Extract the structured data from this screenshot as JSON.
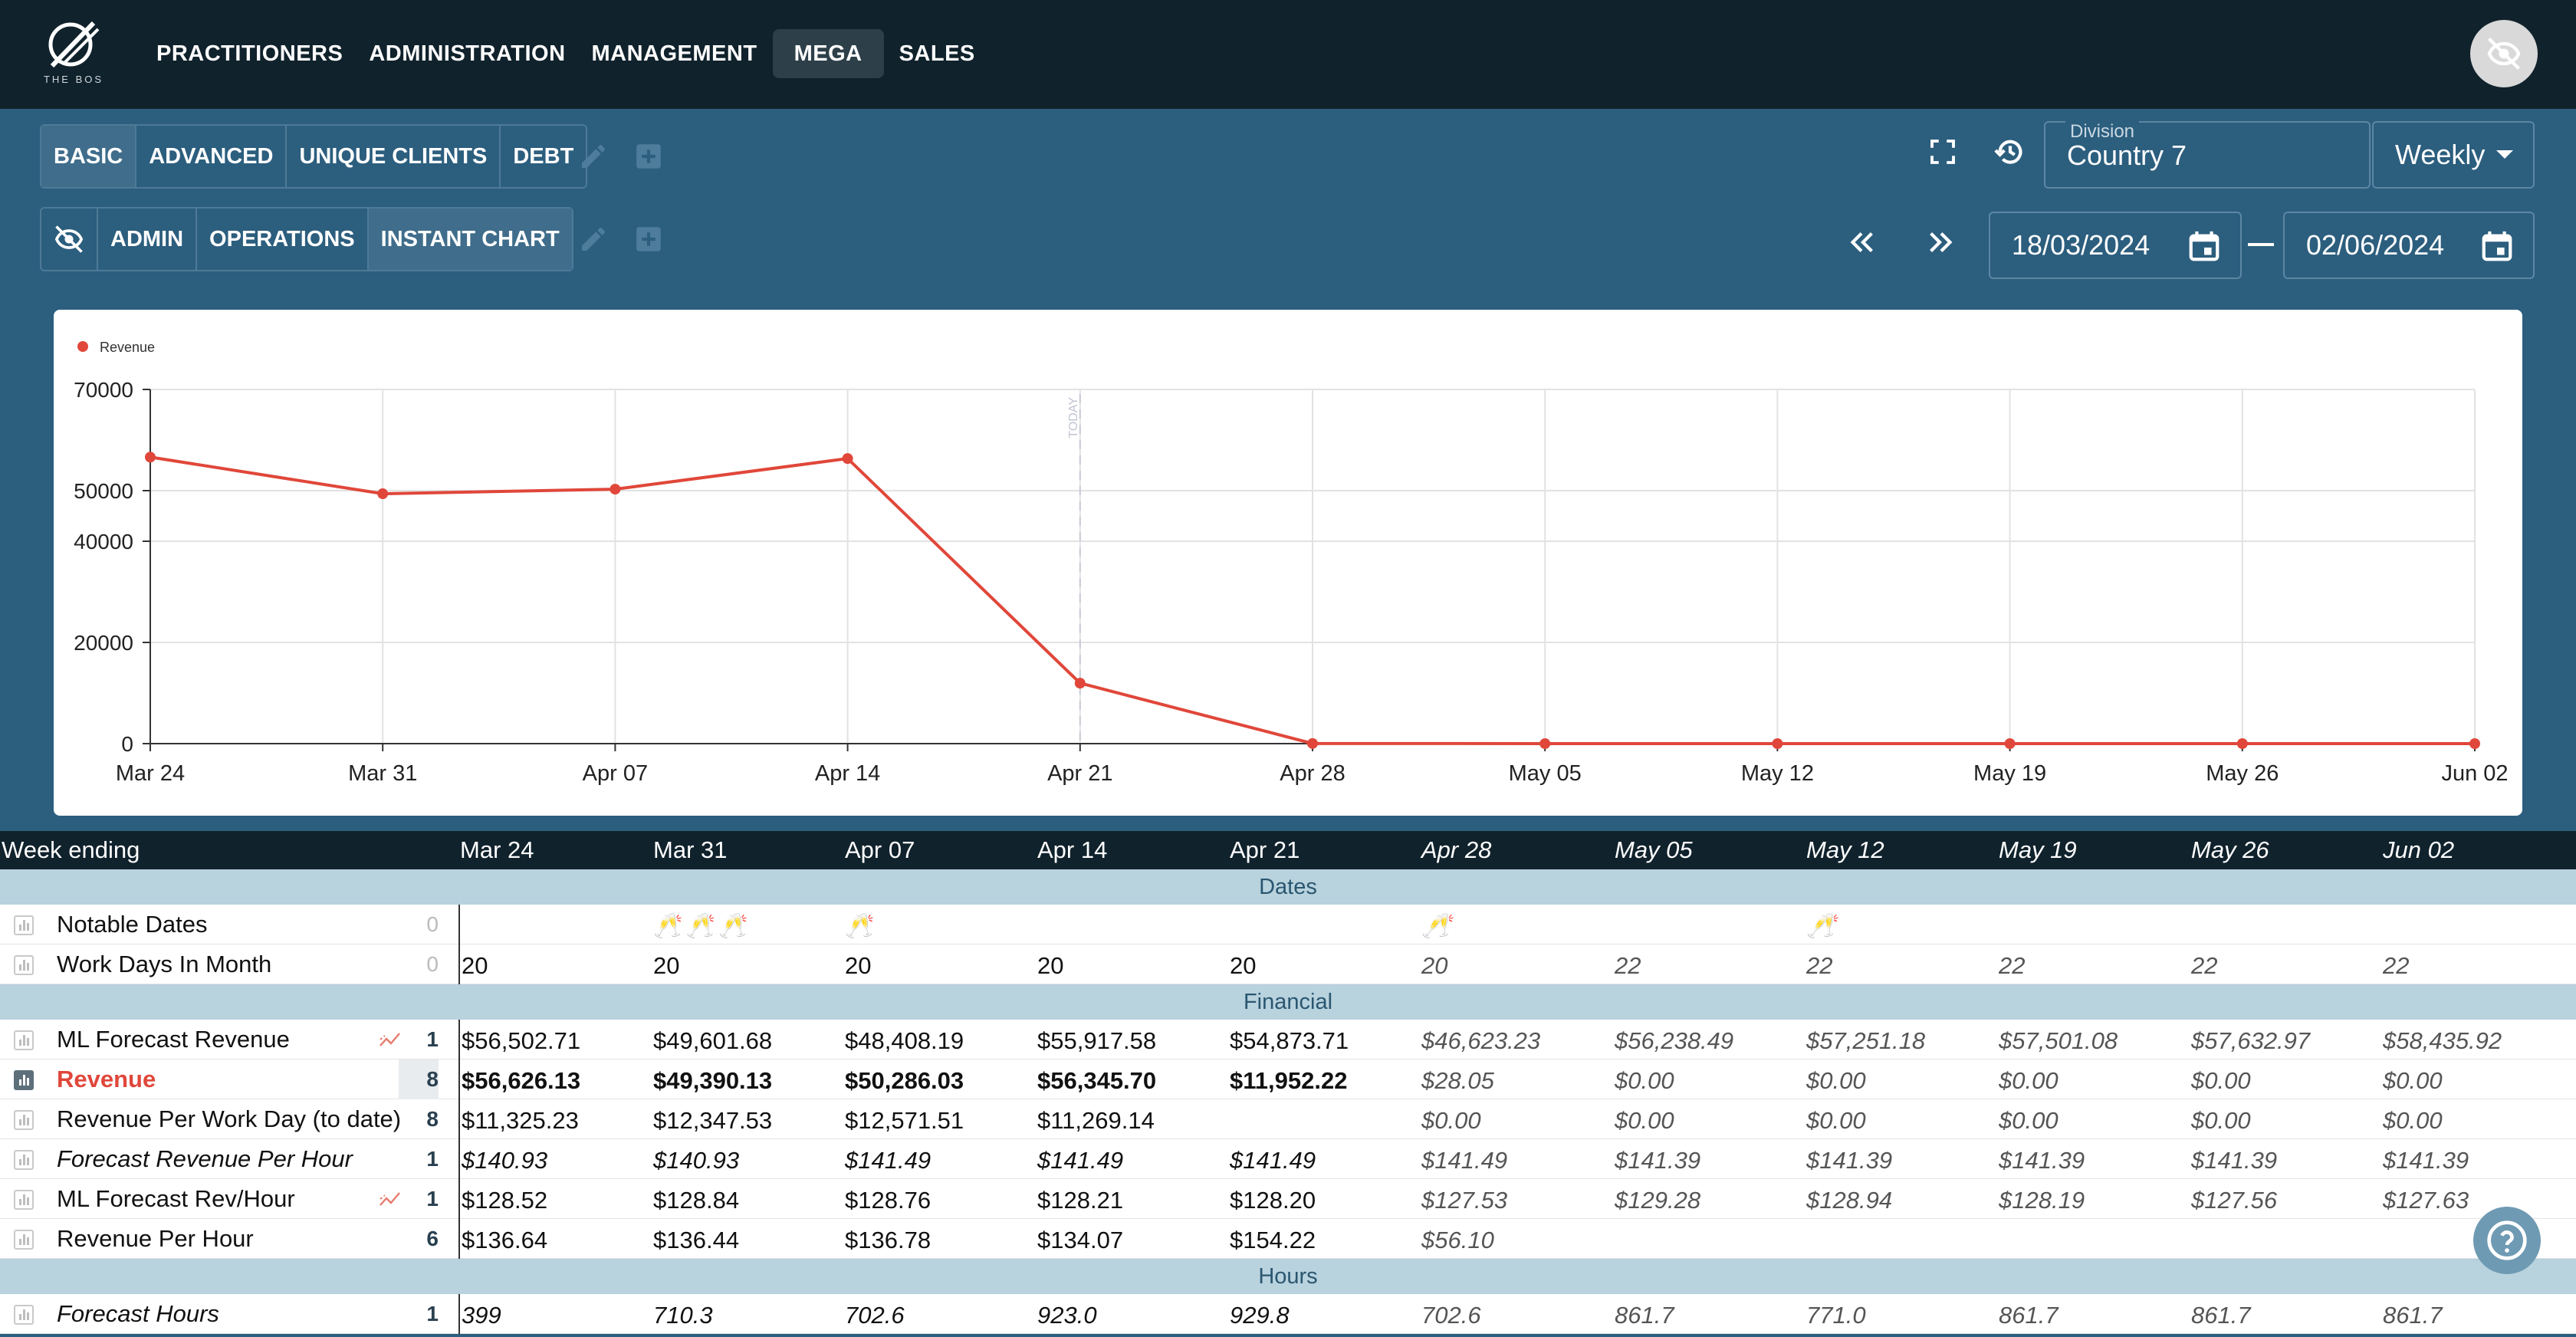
{
  "brand": {
    "logo_text": "THE BOS"
  },
  "nav": {
    "items": [
      {
        "label": "PRACTITIONERS",
        "active": false
      },
      {
        "label": "ADMINISTRATION",
        "active": false
      },
      {
        "label": "MANAGEMENT",
        "active": false
      },
      {
        "label": "MEGA",
        "active": true
      },
      {
        "label": "SALES",
        "active": false
      }
    ]
  },
  "toolbar1": {
    "tabs": [
      "BASIC",
      "ADVANCED",
      "UNIQUE CLIENTS",
      "DEBT"
    ],
    "active": "BASIC"
  },
  "toolbar2": {
    "tabs": [
      "ADMIN",
      "OPERATIONS",
      "INSTANT CHART"
    ],
    "active": "INSTANT CHART"
  },
  "division": {
    "label": "Division",
    "value": "Country 7"
  },
  "period": {
    "value": "Weekly"
  },
  "dates": {
    "from": "18/03/2024",
    "to": "02/06/2024"
  },
  "chart_data": {
    "type": "line",
    "x": [
      "Mar 24",
      "Mar 31",
      "Apr 07",
      "Apr 14",
      "Apr 21",
      "Apr 28",
      "May 05",
      "May 12",
      "May 19",
      "May 26",
      "Jun 02"
    ],
    "series": [
      {
        "name": "Revenue",
        "values": [
          56626.13,
          49390.13,
          50286.03,
          56345.7,
          11952.22,
          28.05,
          0,
          0,
          0,
          0,
          0
        ],
        "color": "#e0473a"
      }
    ],
    "y_ticks": [
      0,
      20000,
      40000,
      50000,
      70000
    ],
    "ylim": [
      0,
      70000
    ],
    "today_marker": {
      "label": "TODAY",
      "at": "Apr 21"
    },
    "grid": true,
    "legend": "top-left"
  },
  "table": {
    "week_label": "Week ending",
    "weeks": [
      "Mar 24",
      "Mar 31",
      "Apr 07",
      "Apr 14",
      "Apr 21",
      "Apr 28",
      "May 05",
      "May 12",
      "May 19",
      "May 26",
      "Jun 02"
    ],
    "sections": {
      "dates": "Dates",
      "financial": "Financial",
      "hours": "Hours"
    },
    "rows": {
      "notable": {
        "label": "Notable Dates",
        "count": "0",
        "icons": [
          "",
          "🥂🥂🥂",
          "🥂",
          "",
          "",
          "🥂",
          "",
          "🥂",
          "",
          "",
          ""
        ]
      },
      "workdays": {
        "label": "Work Days In Month",
        "count": "0",
        "values": [
          "20",
          "20",
          "20",
          "20",
          "20",
          "20",
          "22",
          "22",
          "22",
          "22",
          "22"
        ]
      },
      "ml_forecast_revenue": {
        "label": "ML Forecast Revenue",
        "count": "1",
        "values": [
          "$56,502.71",
          "$49,601.68",
          "$48,408.19",
          "$55,917.58",
          "$54,873.71",
          "$46,623.23",
          "$56,238.49",
          "$57,251.18",
          "$57,501.08",
          "$57,632.97",
          "$58,435.92"
        ]
      },
      "revenue": {
        "label": "Revenue",
        "count": "8",
        "values": [
          "$56,626.13",
          "$49,390.13",
          "$50,286.03",
          "$56,345.70",
          "$11,952.22",
          "$28.05",
          "$0.00",
          "$0.00",
          "$0.00",
          "$0.00",
          "$0.00"
        ]
      },
      "rev_per_workday": {
        "label": "Revenue Per Work Day (to date)",
        "count": "8",
        "values": [
          "$11,325.23",
          "$12,347.53",
          "$12,571.51",
          "$11,269.14",
          "",
          "$0.00",
          "$0.00",
          "$0.00",
          "$0.00",
          "$0.00",
          "$0.00"
        ]
      },
      "forecast_rev_per_hour": {
        "label": "Forecast Revenue Per Hour",
        "count": "1",
        "values": [
          "$140.93",
          "$140.93",
          "$141.49",
          "$141.49",
          "$141.49",
          "$141.49",
          "$141.39",
          "$141.39",
          "$141.39",
          "$141.39",
          "$141.39"
        ]
      },
      "ml_forecast_rev_hour": {
        "label": "ML Forecast Rev/Hour",
        "count": "1",
        "values": [
          "$128.52",
          "$128.84",
          "$128.76",
          "$128.21",
          "$128.20",
          "$127.53",
          "$129.28",
          "$128.94",
          "$128.19",
          "$127.56",
          "$127.63"
        ]
      },
      "rev_per_hour": {
        "label": "Revenue Per Hour",
        "count": "6",
        "values": [
          "$136.64",
          "$136.44",
          "$136.78",
          "$134.07",
          "$154.22",
          "$56.10",
          "",
          "",
          "",
          "",
          ""
        ]
      },
      "forecast_hours": {
        "label": "Forecast Hours",
        "count": "1",
        "values": [
          "399",
          "710.3",
          "702.6",
          "923.0",
          "929.8",
          "702.6",
          "861.7",
          "771.0",
          "861.7",
          "861.7",
          "861.7"
        ]
      }
    }
  }
}
